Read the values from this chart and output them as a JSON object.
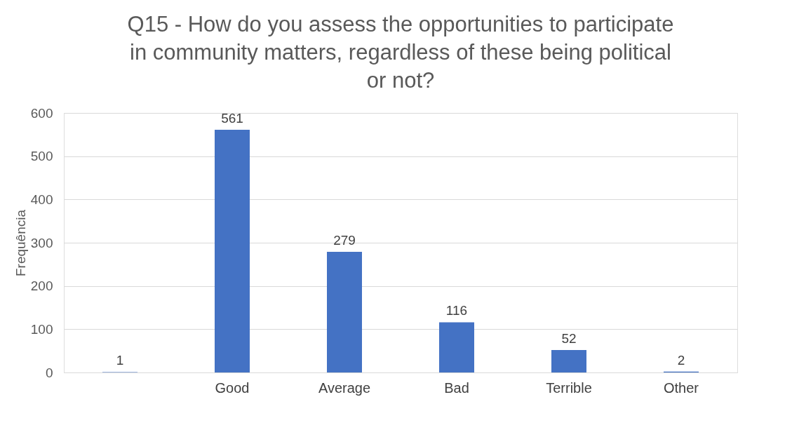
{
  "chart_data": {
    "type": "bar",
    "title": "Q15 - How do you assess the opportunities to participate in community matters, regardless of these being political or not?",
    "ylabel": "Frequência",
    "categories": [
      null,
      "Good",
      "Average",
      "Bad",
      "Terrible",
      "Other"
    ],
    "values": [
      1,
      561,
      279,
      116,
      52,
      2
    ],
    "color": "#4472c4",
    "ylim": [
      0,
      600
    ],
    "yticks": [
      0,
      100,
      200,
      300,
      400,
      500,
      600
    ],
    "grid": "y",
    "data_labels": true
  }
}
